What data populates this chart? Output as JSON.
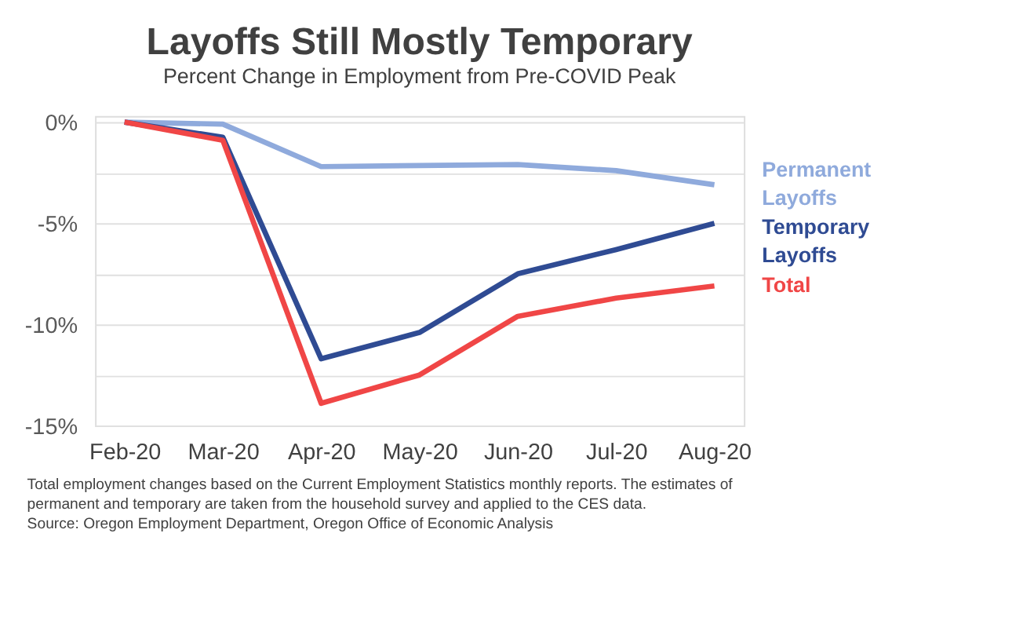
{
  "chart_data": {
    "type": "line",
    "title": "Layoffs Still Mostly Temporary",
    "subtitle": "Percent Change in Employment from Pre-COVID Peak",
    "categories": [
      "Feb-20",
      "Mar-20",
      "Apr-20",
      "May-20",
      "Jun-20",
      "Jul-20",
      "Aug-20"
    ],
    "series": [
      {
        "name": "Permanent Layoffs",
        "color": "#8faadc",
        "values": [
          0,
          -0.1,
          -2.2,
          -2.15,
          -2.1,
          -2.4,
          -3.1
        ]
      },
      {
        "name": "Temporary Layoffs",
        "color": "#2f4b93",
        "values": [
          0,
          -0.75,
          -11.7,
          -10.4,
          -7.5,
          -6.3,
          -5.0
        ]
      },
      {
        "name": "Total",
        "color": "#f04646",
        "values": [
          0,
          -0.9,
          -13.9,
          -12.5,
          -9.6,
          -8.7,
          -8.1
        ]
      }
    ],
    "ylim": [
      -15,
      0.3
    ],
    "yticks": [
      {
        "value": 0,
        "label": "0%"
      },
      {
        "value": -2.5,
        "label": null
      },
      {
        "value": -5,
        "label": "-5%"
      },
      {
        "value": -7.5,
        "label": null
      },
      {
        "value": -10,
        "label": "-10%"
      },
      {
        "value": -12.5,
        "label": null
      },
      {
        "value": -15,
        "label": "-15%"
      }
    ],
    "grid": "y",
    "line_style": "solid",
    "annotations": [
      "Total employment changes based on the Current Employment Statistics monthly reports. The estimates of",
      "permanent and temporary  are taken from the household survey and applied to the CES data.",
      "Source: Oregon Employment Department, Oregon Office of Economic Analysis"
    ]
  }
}
